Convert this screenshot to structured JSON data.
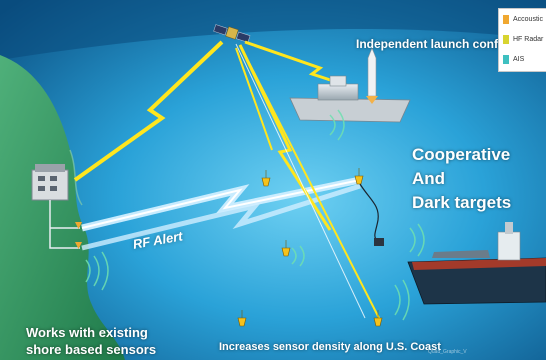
{
  "labels": {
    "launch": "Independent launch confirmation",
    "cooperative_line1": "Cooperative",
    "cooperative_line2": "And",
    "cooperative_line3": "Dark targets",
    "shore_line1": "Works with existing",
    "shore_line2": "shore based sensors",
    "density": "Increases sensor density along U.S. Coast",
    "rf_alert": "RF Alert",
    "watermark": "Quad_Graphic_V"
  },
  "legend": {
    "items": [
      {
        "label": "Accoustic",
        "color": "#f0a830"
      },
      {
        "label": "HF Radar",
        "color": "#d8d430"
      },
      {
        "label": "AIS",
        "color": "#3ec0c0"
      }
    ]
  },
  "colors": {
    "ocean": "#1f8ec8",
    "land": "#2e9a5a",
    "lightning": "#ffe61e",
    "rf_link": "#bfe8ff"
  }
}
